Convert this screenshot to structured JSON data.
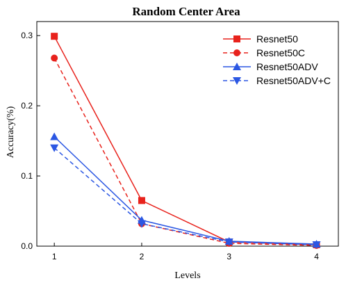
{
  "chart_data": {
    "type": "line",
    "title": "Random Center Area",
    "xlabel": "Levels",
    "ylabel": "Accuracy(%)",
    "x": [
      1,
      2,
      3,
      4
    ],
    "xlim": [
      0.8,
      4.25
    ],
    "ylim": [
      0,
      0.32
    ],
    "yticks": [
      0.0,
      0.1,
      0.2,
      0.3
    ],
    "ytick_labels": [
      "0.0",
      "0.1",
      "0.2",
      "0.3"
    ],
    "xticks": [
      1,
      2,
      3,
      4
    ],
    "xtick_labels": [
      "1",
      "2",
      "3",
      "4"
    ],
    "grid": false,
    "legend_position": "top-right",
    "series": [
      {
        "name": "Resnet50",
        "values": [
          0.299,
          0.065,
          0.006,
          0.002
        ],
        "color": "#e8221c",
        "dash": "solid",
        "marker": "square"
      },
      {
        "name": "Resnet50C",
        "values": [
          0.268,
          0.032,
          0.004,
          0.001
        ],
        "color": "#e8221c",
        "dash": "dashed",
        "marker": "circle"
      },
      {
        "name": "Resnet50ADV",
        "values": [
          0.156,
          0.037,
          0.007,
          0.003
        ],
        "color": "#2b57e3",
        "dash": "solid",
        "marker": "triangle-up"
      },
      {
        "name": "Resnet50ADV+C",
        "values": [
          0.14,
          0.032,
          0.006,
          0.002
        ],
        "color": "#2b57e3",
        "dash": "dashed",
        "marker": "triangle-down"
      }
    ]
  }
}
